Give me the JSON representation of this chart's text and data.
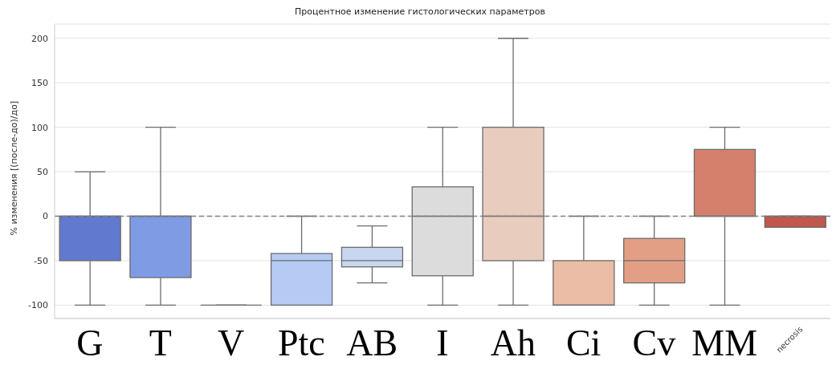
{
  "chart_data": {
    "type": "box",
    "title": "Процентное изменение гистологических параметров",
    "ylabel": "% изменения [(после-до)/до]",
    "categories": [
      "G",
      "T",
      "V",
      "Ptc",
      "AB",
      "I",
      "Ah",
      "Ci",
      "Cv",
      "MM",
      "necrosis"
    ],
    "colors": [
      "#6279d0",
      "#7f9be3",
      "#6b6b6b",
      "#b5cbf3",
      "#c9d6f0",
      "#dcdcdc",
      "#e8cdbf",
      "#ebbda7",
      "#e39f86",
      "#d5806c",
      "#c0584e"
    ],
    "boxes": [
      {
        "low": -100,
        "q1": -50,
        "median": 0,
        "q3": 0,
        "high": 50
      },
      {
        "low": -100,
        "q1": -69,
        "median": 0,
        "q3": 0,
        "high": 100
      },
      {
        "low": -100,
        "q1": -100,
        "median": -100,
        "q3": -100,
        "high": -100
      },
      {
        "low": -100,
        "q1": -100,
        "median": -50,
        "q3": -42,
        "high": 0
      },
      {
        "low": -75,
        "q1": -57,
        "median": -50,
        "q3": -35,
        "high": -11
      },
      {
        "low": -100,
        "q1": -67,
        "median": 0,
        "q3": 33,
        "high": 100
      },
      {
        "low": -100,
        "q1": -50,
        "median": 0,
        "q3": 100,
        "high": 200
      },
      {
        "low": -100,
        "q1": -100,
        "median": -100,
        "q3": -50,
        "high": 0
      },
      {
        "low": -100,
        "q1": -75,
        "median": -50,
        "q3": -25,
        "high": 0
      },
      {
        "low": -100,
        "q1": 0,
        "median": 0,
        "q3": 75,
        "high": 100
      },
      {
        "low": -12.5,
        "q1": -12.5,
        "median": 0,
        "q3": 0,
        "high": 0
      }
    ],
    "ylim": [
      -115,
      216
    ],
    "yticks": [
      -100,
      -50,
      0,
      50,
      100,
      150,
      200
    ],
    "grid": "y",
    "ref_lines": [
      {
        "axis": "y",
        "value": 0,
        "color": "#808080",
        "line_style": "dashed"
      }
    ]
  }
}
